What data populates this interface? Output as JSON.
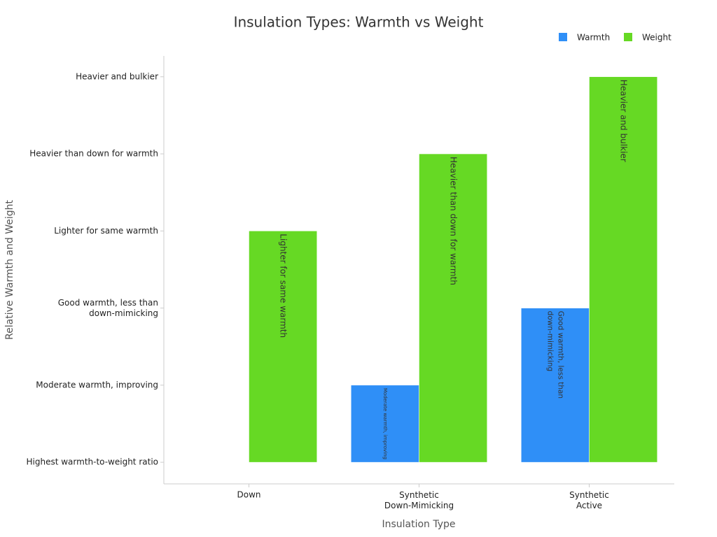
{
  "chart_data": {
    "type": "bar",
    "title": "Insulation Types: Warmth vs Weight",
    "x_label": "Insulation Type",
    "y_label": "Relative Warmth and Weight",
    "categories": [
      "Down",
      "Synthetic\nDown-Mimicking",
      "Synthetic\nActive"
    ],
    "series": [
      {
        "name": "Warmth",
        "color": "#2f8ff7",
        "values": [
          0,
          1,
          2
        ],
        "value_labels": [
          null,
          "Moderate warmth, improving",
          "Good warmth, less than\ndown-mimicking"
        ]
      },
      {
        "name": "Weight",
        "color": "#66d924",
        "values": [
          3,
          4,
          5
        ],
        "value_labels": [
          "Lighter for same warmth",
          "Heavier than down for warmth",
          "Heavier and bulkier"
        ]
      }
    ],
    "ylim": [
      -0.28,
      5.27
    ],
    "yticks": [
      {
        "value": 0,
        "label": "Highest warmth-to-weight ratio"
      },
      {
        "value": 1,
        "label": "Moderate warmth, improving"
      },
      {
        "value": 2,
        "label": "Good warmth, less than\ndown-mimicking"
      },
      {
        "value": 3,
        "label": "Lighter for same warmth"
      },
      {
        "value": 4,
        "label": "Heavier than down for warmth"
      },
      {
        "value": 5,
        "label": "Heavier and bulkier"
      }
    ],
    "legend": "top-right"
  }
}
